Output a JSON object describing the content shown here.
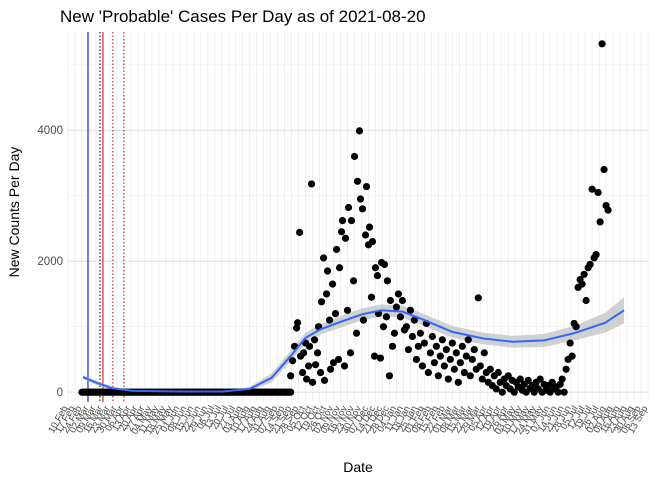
{
  "chart_data": {
    "type": "scatter",
    "title": "New 'Probable' Cases Per Day as of 2021-08-20",
    "xlabel": "Date",
    "ylabel": "New Counts Per Day",
    "x_range": [
      "2020-02-10",
      "2021-09-13"
    ],
    "ylim": [
      -150,
      5500
    ],
    "y_ticks": [
      0,
      2000,
      4000
    ],
    "grid": true,
    "x_tick_labels": [
      "10 Feb",
      "17 Feb",
      "24 Feb",
      "02 Mar",
      "09 Mar",
      "16 Mar",
      "23 Mar",
      "30 Mar",
      "06 Apr",
      "13 Apr",
      "20 Apr",
      "27 Apr",
      "04 May",
      "11 May",
      "18 May",
      "25 May",
      "01 Jun",
      "08 Jun",
      "15 Jun",
      "22 Jun",
      "29 Jun",
      "06 Jul",
      "13 Jul",
      "20 Jul",
      "27 Jul",
      "03 Aug",
      "10 Aug",
      "17 Aug",
      "24 Aug",
      "31 Aug",
      "07 Sep",
      "14 Sep",
      "21 Sep",
      "28 Sep",
      "05 Oct",
      "12 Oct",
      "19 Oct",
      "26 Oct",
      "02 Nov",
      "09 Nov",
      "16 Nov",
      "23 Nov",
      "30 Nov",
      "07 Dec",
      "14 Dec",
      "21 Dec",
      "28 Dec",
      "04 Jan",
      "11 Jan",
      "18 Jan",
      "25 Jan",
      "01 Feb",
      "08 Feb",
      "15 Feb",
      "22 Feb",
      "01 Mar",
      "08 Mar",
      "15 Mar",
      "22 Mar",
      "29 Mar",
      "05 Apr",
      "12 Apr",
      "19 Apr",
      "26 Apr",
      "03 May",
      "10 May",
      "17 May",
      "24 May",
      "31 May",
      "07 Jun",
      "14 Jun",
      "21 Jun",
      "28 Jun",
      "05 Jul",
      "12 Jul",
      "19 Jul",
      "26 Jul",
      "02 Aug",
      "09 Aug",
      "16 Aug",
      "23 Aug",
      "30 Aug",
      "06 Sep",
      "13 Sep"
    ],
    "vlines": [
      {
        "date": "2020-03-01",
        "color": "#0000cc",
        "style": "solid"
      },
      {
        "date": "2020-03-13",
        "color": "#000000",
        "style": "dotted"
      },
      {
        "date": "2020-03-16",
        "color": "#cc0000",
        "style": "solid"
      },
      {
        "date": "2020-03-26",
        "color": "#cc0000",
        "style": "dotted"
      },
      {
        "date": "2020-04-06",
        "color": "#cc0000",
        "style": "dotted"
      }
    ],
    "smooth": {
      "color": "#3366ff",
      "band_color": "#bdbdbd",
      "points": [
        {
          "x": "2020-02-25",
          "y": 230,
          "lo": 200,
          "hi": 260
        },
        {
          "x": "2020-03-10",
          "y": 140,
          "lo": 110,
          "hi": 170
        },
        {
          "x": "2020-03-25",
          "y": 60,
          "lo": 35,
          "hi": 85
        },
        {
          "x": "2020-04-15",
          "y": 20,
          "lo": 0,
          "hi": 40
        },
        {
          "x": "2020-06-01",
          "y": 10,
          "lo": -10,
          "hi": 30
        },
        {
          "x": "2020-07-15",
          "y": 10,
          "lo": -10,
          "hi": 30
        },
        {
          "x": "2020-08-10",
          "y": 50,
          "lo": 20,
          "hi": 80
        },
        {
          "x": "2020-09-01",
          "y": 220,
          "lo": 150,
          "hi": 290
        },
        {
          "x": "2020-09-20",
          "y": 550,
          "lo": 470,
          "hi": 630
        },
        {
          "x": "2020-10-05",
          "y": 830,
          "lo": 750,
          "hi": 910
        },
        {
          "x": "2020-10-20",
          "y": 960,
          "lo": 880,
          "hi": 1040
        },
        {
          "x": "2020-11-10",
          "y": 1080,
          "lo": 990,
          "hi": 1170
        },
        {
          "x": "2020-12-01",
          "y": 1190,
          "lo": 1100,
          "hi": 1280
        },
        {
          "x": "2020-12-20",
          "y": 1250,
          "lo": 1160,
          "hi": 1340
        },
        {
          "x": "2021-01-10",
          "y": 1230,
          "lo": 1140,
          "hi": 1320
        },
        {
          "x": "2021-02-01",
          "y": 1100,
          "lo": 1010,
          "hi": 1190
        },
        {
          "x": "2021-03-01",
          "y": 920,
          "lo": 830,
          "hi": 1010
        },
        {
          "x": "2021-04-01",
          "y": 820,
          "lo": 730,
          "hi": 910
        },
        {
          "x": "2021-05-01",
          "y": 770,
          "lo": 680,
          "hi": 860
        },
        {
          "x": "2021-06-01",
          "y": 790,
          "lo": 690,
          "hi": 890
        },
        {
          "x": "2021-07-01",
          "y": 900,
          "lo": 790,
          "hi": 1010
        },
        {
          "x": "2021-08-01",
          "y": 1060,
          "lo": 910,
          "hi": 1210
        },
        {
          "x": "2021-08-20",
          "y": 1250,
          "lo": 1050,
          "hi": 1450
        }
      ]
    },
    "points_zero_range": {
      "from": "2020-02-24",
      "to": "2020-09-20",
      "y": 0
    },
    "points": [
      [
        "2020-09-20",
        250
      ],
      [
        "2020-09-22",
        480
      ],
      [
        "2020-09-24",
        700
      ],
      [
        "2020-09-26",
        980
      ],
      [
        "2020-09-27",
        1060
      ],
      [
        "2020-09-29",
        2440
      ],
      [
        "2020-09-30",
        550
      ],
      [
        "2020-10-02",
        300
      ],
      [
        "2020-10-03",
        600
      ],
      [
        "2020-10-05",
        750
      ],
      [
        "2020-10-06",
        200
      ],
      [
        "2020-10-08",
        400
      ],
      [
        "2020-10-09",
        700
      ],
      [
        "2020-10-11",
        3180
      ],
      [
        "2020-10-12",
        150
      ],
      [
        "2020-10-14",
        800
      ],
      [
        "2020-10-15",
        420
      ],
      [
        "2020-10-17",
        600
      ],
      [
        "2020-10-18",
        1000
      ],
      [
        "2020-10-20",
        300
      ],
      [
        "2020-10-21",
        1380
      ],
      [
        "2020-10-23",
        2050
      ],
      [
        "2020-10-24",
        180
      ],
      [
        "2020-10-26",
        1500
      ],
      [
        "2020-10-27",
        1850
      ],
      [
        "2020-10-29",
        1100
      ],
      [
        "2020-10-30",
        350
      ],
      [
        "2020-11-01",
        1650
      ],
      [
        "2020-11-02",
        450
      ],
      [
        "2020-11-04",
        1200
      ],
      [
        "2020-11-05",
        2180
      ],
      [
        "2020-11-07",
        500
      ],
      [
        "2020-11-08",
        1900
      ],
      [
        "2020-11-10",
        2450
      ],
      [
        "2020-11-11",
        2620
      ],
      [
        "2020-11-13",
        400
      ],
      [
        "2020-11-14",
        2350
      ],
      [
        "2020-11-16",
        1250
      ],
      [
        "2020-11-17",
        2820
      ],
      [
        "2020-11-19",
        600
      ],
      [
        "2020-11-20",
        2620
      ],
      [
        "2020-11-22",
        1700
      ],
      [
        "2020-11-23",
        3600
      ],
      [
        "2020-11-25",
        900
      ],
      [
        "2020-11-26",
        3220
      ],
      [
        "2020-11-28",
        3990
      ],
      [
        "2020-11-29",
        2950
      ],
      [
        "2020-12-01",
        2800
      ],
      [
        "2020-12-02",
        1100
      ],
      [
        "2020-12-04",
        2400
      ],
      [
        "2020-12-05",
        3140
      ],
      [
        "2020-12-07",
        2250
      ],
      [
        "2020-12-08",
        2520
      ],
      [
        "2020-12-10",
        1450
      ],
      [
        "2020-12-11",
        2300
      ],
      [
        "2020-12-13",
        550
      ],
      [
        "2020-12-14",
        1900
      ],
      [
        "2020-12-16",
        1780
      ],
      [
        "2020-12-17",
        1200
      ],
      [
        "2020-12-19",
        520
      ],
      [
        "2020-12-20",
        1980
      ],
      [
        "2020-12-22",
        1000
      ],
      [
        "2020-12-23",
        1950
      ],
      [
        "2020-12-25",
        1150
      ],
      [
        "2020-12-26",
        1700
      ],
      [
        "2020-12-28",
        250
      ],
      [
        "2020-12-29",
        1400
      ],
      [
        "2020-12-31",
        700
      ],
      [
        "2021-01-02",
        900
      ],
      [
        "2021-01-04",
        1300
      ],
      [
        "2021-01-06",
        1500
      ],
      [
        "2021-01-08",
        1150
      ],
      [
        "2021-01-10",
        1400
      ],
      [
        "2021-01-12",
        950
      ],
      [
        "2021-01-14",
        1000
      ],
      [
        "2021-01-16",
        650
      ],
      [
        "2021-01-18",
        1250
      ],
      [
        "2021-01-20",
        850
      ],
      [
        "2021-01-22",
        1100
      ],
      [
        "2021-01-24",
        500
      ],
      [
        "2021-01-26",
        700
      ],
      [
        "2021-01-28",
        900
      ],
      [
        "2021-01-30",
        400
      ],
      [
        "2021-02-01",
        750
      ],
      [
        "2021-02-03",
        1050
      ],
      [
        "2021-02-05",
        300
      ],
      [
        "2021-02-07",
        600
      ],
      [
        "2021-02-09",
        850
      ],
      [
        "2021-02-11",
        450
      ],
      [
        "2021-02-13",
        700
      ],
      [
        "2021-02-15",
        250
      ],
      [
        "2021-02-17",
        550
      ],
      [
        "2021-02-19",
        800
      ],
      [
        "2021-02-21",
        400
      ],
      [
        "2021-02-23",
        650
      ],
      [
        "2021-02-25",
        200
      ],
      [
        "2021-02-27",
        500
      ],
      [
        "2021-03-01",
        750
      ],
      [
        "2021-03-03",
        350
      ],
      [
        "2021-03-05",
        600
      ],
      [
        "2021-03-07",
        150
      ],
      [
        "2021-03-09",
        450
      ],
      [
        "2021-03-11",
        700
      ],
      [
        "2021-03-13",
        300
      ],
      [
        "2021-03-15",
        550
      ],
      [
        "2021-03-17",
        800
      ],
      [
        "2021-03-19",
        250
      ],
      [
        "2021-03-21",
        500
      ],
      [
        "2021-03-23",
        650
      ],
      [
        "2021-03-25",
        350
      ],
      [
        "2021-03-27",
        1440
      ],
      [
        "2021-03-29",
        400
      ],
      [
        "2021-03-31",
        200
      ],
      [
        "2021-04-02",
        600
      ],
      [
        "2021-04-04",
        300
      ],
      [
        "2021-04-06",
        150
      ],
      [
        "2021-04-08",
        350
      ],
      [
        "2021-04-10",
        100
      ],
      [
        "2021-04-12",
        250
      ],
      [
        "2021-04-14",
        50
      ],
      [
        "2021-04-16",
        300
      ],
      [
        "2021-04-18",
        150
      ],
      [
        "2021-04-20",
        0
      ],
      [
        "2021-04-22",
        200
      ],
      [
        "2021-04-24",
        100
      ],
      [
        "2021-04-26",
        250
      ],
      [
        "2021-04-28",
        50
      ],
      [
        "2021-04-30",
        180
      ],
      [
        "2021-05-02",
        0
      ],
      [
        "2021-05-04",
        150
      ],
      [
        "2021-05-06",
        80
      ],
      [
        "2021-05-08",
        200
      ],
      [
        "2021-05-10",
        30
      ],
      [
        "2021-05-12",
        120
      ],
      [
        "2021-05-14",
        0
      ],
      [
        "2021-05-16",
        180
      ],
      [
        "2021-05-18",
        60
      ],
      [
        "2021-05-20",
        100
      ],
      [
        "2021-05-22",
        0
      ],
      [
        "2021-05-24",
        150
      ],
      [
        "2021-05-26",
        50
      ],
      [
        "2021-05-28",
        200
      ],
      [
        "2021-05-30",
        0
      ],
      [
        "2021-06-01",
        120
      ],
      [
        "2021-06-03",
        30
      ],
      [
        "2021-06-05",
        100
      ],
      [
        "2021-06-07",
        0
      ],
      [
        "2021-06-09",
        150
      ],
      [
        "2021-06-11",
        50
      ],
      [
        "2021-06-13",
        80
      ],
      [
        "2021-06-15",
        0
      ],
      [
        "2021-06-17",
        120
      ],
      [
        "2021-06-19",
        200
      ],
      [
        "2021-06-21",
        0
      ],
      [
        "2021-06-23",
        350
      ],
      [
        "2021-06-25",
        500
      ],
      [
        "2021-06-27",
        750
      ],
      [
        "2021-06-29",
        550
      ],
      [
        "2021-07-01",
        1050
      ],
      [
        "2021-07-03",
        1000
      ],
      [
        "2021-07-05",
        1600
      ],
      [
        "2021-07-07",
        1720
      ],
      [
        "2021-07-09",
        1650
      ],
      [
        "2021-07-11",
        1800
      ],
      [
        "2021-07-13",
        1400
      ],
      [
        "2021-07-15",
        1900
      ],
      [
        "2021-07-17",
        1950
      ],
      [
        "2021-07-19",
        3100
      ],
      [
        "2021-07-21",
        2050
      ],
      [
        "2021-07-23",
        2100
      ],
      [
        "2021-07-25",
        3050
      ],
      [
        "2021-07-27",
        2600
      ],
      [
        "2021-07-29",
        5320
      ],
      [
        "2021-07-31",
        3400
      ],
      [
        "2021-08-02",
        2850
      ],
      [
        "2021-08-04",
        2780
      ]
    ]
  }
}
